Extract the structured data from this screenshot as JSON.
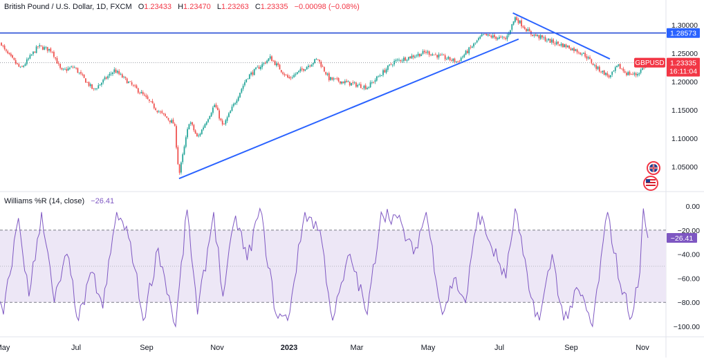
{
  "legend": {
    "symbol": "British Pound / U.S. Dollar, 1D, FXCM",
    "o_label": "O",
    "o_value": "1.23433",
    "h_label": "H",
    "h_value": "1.23470",
    "l_label": "L",
    "l_value": "1.23263",
    "c_label": "C",
    "c_value": "1.23335",
    "change": "−0.00098 (−0.08%)"
  },
  "indicator_legend": {
    "name": "Williams %R (14, close)",
    "value": "−26.41"
  },
  "colors": {
    "up": "#26a69a",
    "down": "#ef5350",
    "trendline": "#2962ff",
    "hline": "#2a4fd6",
    "wr_line": "#7e57c2",
    "wr_band": "#ede7f6",
    "price_badge": "#f23645",
    "hline_badge": "#2962ff"
  },
  "chart_data": [
    {
      "type": "candlestick",
      "title": "British Pound / U.S. Dollar, 1D, FXCM",
      "x_tick_labels": [
        "May",
        "Jul",
        "Sep",
        "Nov",
        "2023",
        "Mar",
        "May",
        "Jul",
        "Sep",
        "Nov"
      ],
      "y_tick_labels": [
        "1.30000",
        "1.25000",
        "1.20000",
        "1.15000",
        "1.10000",
        "1.05000"
      ],
      "ylim": [
        1.01,
        1.32
      ],
      "close_path": [
        {
          "date": "2022-04-18",
          "value": 1.3
        },
        {
          "date": "2022-04-28",
          "value": 1.255
        },
        {
          "date": "2022-05-12",
          "value": 1.222
        },
        {
          "date": "2022-05-27",
          "value": 1.262
        },
        {
          "date": "2022-06-08",
          "value": 1.255
        },
        {
          "date": "2022-06-16",
          "value": 1.218
        },
        {
          "date": "2022-06-27",
          "value": 1.226
        },
        {
          "date": "2022-07-14",
          "value": 1.185
        },
        {
          "date": "2022-08-01",
          "value": 1.22
        },
        {
          "date": "2022-08-24",
          "value": 1.18
        },
        {
          "date": "2022-09-07",
          "value": 1.15
        },
        {
          "date": "2022-09-22",
          "value": 1.125
        },
        {
          "date": "2022-09-26",
          "value": 1.035
        },
        {
          "date": "2022-10-05",
          "value": 1.132
        },
        {
          "date": "2022-10-12",
          "value": 1.1
        },
        {
          "date": "2022-10-27",
          "value": 1.16
        },
        {
          "date": "2022-11-03",
          "value": 1.12
        },
        {
          "date": "2022-11-24",
          "value": 1.208
        },
        {
          "date": "2022-12-14",
          "value": 1.242
        },
        {
          "date": "2022-12-30",
          "value": 1.205
        },
        {
          "date": "2023-01-24",
          "value": 1.24
        },
        {
          "date": "2023-02-03",
          "value": 1.205
        },
        {
          "date": "2023-03-08",
          "value": 1.19
        },
        {
          "date": "2023-03-31",
          "value": 1.235
        },
        {
          "date": "2023-04-28",
          "value": 1.252
        },
        {
          "date": "2023-05-25",
          "value": 1.235
        },
        {
          "date": "2023-06-16",
          "value": 1.282
        },
        {
          "date": "2023-07-06",
          "value": 1.275
        },
        {
          "date": "2023-07-14",
          "value": 1.313
        },
        {
          "date": "2023-07-27",
          "value": 1.285
        },
        {
          "date": "2023-08-15",
          "value": 1.27
        },
        {
          "date": "2023-08-28",
          "value": 1.262
        },
        {
          "date": "2023-09-12",
          "value": 1.248
        },
        {
          "date": "2023-09-22",
          "value": 1.225
        },
        {
          "date": "2023-10-04",
          "value": 1.208
        },
        {
          "date": "2023-10-11",
          "value": 1.228
        },
        {
          "date": "2023-10-18",
          "value": 1.215
        },
        {
          "date": "2023-10-27",
          "value": 1.212
        },
        {
          "date": "2023-11-06",
          "value": 1.2334
        }
      ],
      "horizontal_line": {
        "value": 1.28573,
        "label": "1.28573"
      },
      "trendlines": [
        {
          "from": {
            "date": "2022-09-26",
            "value": 1.029
          },
          "to": {
            "date": "2023-07-17",
            "value": 1.275
          }
        },
        {
          "from": {
            "date": "2023-07-12",
            "value": 1.321
          },
          "to": {
            "date": "2023-10-04",
            "value": 1.24
          }
        }
      ],
      "dotted_last_price": 1.23335,
      "price_badge": {
        "symbol": "GBPUSD",
        "price": "1.23335",
        "countdown": "16:11:04"
      }
    },
    {
      "type": "line",
      "title": "Williams %R (14, close)",
      "y_tick_labels": [
        "0.00",
        "−20.00",
        "−40.00",
        "−60.00",
        "−80.00",
        "−100.00"
      ],
      "ylim": [
        -103,
        3
      ],
      "band": [
        -80,
        -20
      ],
      "midline": -50,
      "last_value": -26.41,
      "last_label": "−26.41",
      "path": [
        {
          "date": "2022-04-18",
          "value": -60
        },
        {
          "date": "2022-04-27",
          "value": -90
        },
        {
          "date": "2022-05-10",
          "value": -10
        },
        {
          "date": "2022-05-19",
          "value": -75
        },
        {
          "date": "2022-05-30",
          "value": -5
        },
        {
          "date": "2022-06-10",
          "value": -80
        },
        {
          "date": "2022-06-21",
          "value": -40
        },
        {
          "date": "2022-07-01",
          "value": -95
        },
        {
          "date": "2022-07-13",
          "value": -55
        },
        {
          "date": "2022-07-22",
          "value": -85
        },
        {
          "date": "2022-08-03",
          "value": -5
        },
        {
          "date": "2022-08-15",
          "value": -30
        },
        {
          "date": "2022-08-26",
          "value": -95
        },
        {
          "date": "2022-09-08",
          "value": -35
        },
        {
          "date": "2022-09-23",
          "value": -100
        },
        {
          "date": "2022-10-03",
          "value": -3
        },
        {
          "date": "2022-10-12",
          "value": -90
        },
        {
          "date": "2022-10-26",
          "value": -5
        },
        {
          "date": "2022-11-03",
          "value": -75
        },
        {
          "date": "2022-11-14",
          "value": -8
        },
        {
          "date": "2022-11-24",
          "value": -45
        },
        {
          "date": "2022-12-05",
          "value": -2
        },
        {
          "date": "2022-12-19",
          "value": -90
        },
        {
          "date": "2022-12-29",
          "value": -95
        },
        {
          "date": "2023-01-13",
          "value": -5
        },
        {
          "date": "2023-01-26",
          "value": -20
        },
        {
          "date": "2023-02-06",
          "value": -95
        },
        {
          "date": "2023-02-21",
          "value": -40
        },
        {
          "date": "2023-03-08",
          "value": -90
        },
        {
          "date": "2023-03-20",
          "value": -5
        },
        {
          "date": "2023-04-03",
          "value": -10
        },
        {
          "date": "2023-04-17",
          "value": -40
        },
        {
          "date": "2023-04-28",
          "value": -5
        },
        {
          "date": "2023-05-12",
          "value": -90
        },
        {
          "date": "2023-05-22",
          "value": -60
        },
        {
          "date": "2023-06-01",
          "value": -80
        },
        {
          "date": "2023-06-12",
          "value": -5
        },
        {
          "date": "2023-06-22",
          "value": -30
        },
        {
          "date": "2023-07-06",
          "value": -60
        },
        {
          "date": "2023-07-14",
          "value": -2
        },
        {
          "date": "2023-07-26",
          "value": -70
        },
        {
          "date": "2023-08-04",
          "value": -95
        },
        {
          "date": "2023-08-15",
          "value": -40
        },
        {
          "date": "2023-08-25",
          "value": -95
        },
        {
          "date": "2023-09-07",
          "value": -70
        },
        {
          "date": "2023-09-19",
          "value": -100
        },
        {
          "date": "2023-10-02",
          "value": -5
        },
        {
          "date": "2023-10-13",
          "value": -65
        },
        {
          "date": "2023-10-23",
          "value": -92
        },
        {
          "date": "2023-10-30",
          "value": -55
        },
        {
          "date": "2023-11-02",
          "value": -2
        },
        {
          "date": "2023-11-06",
          "value": -26.41
        }
      ]
    }
  ]
}
